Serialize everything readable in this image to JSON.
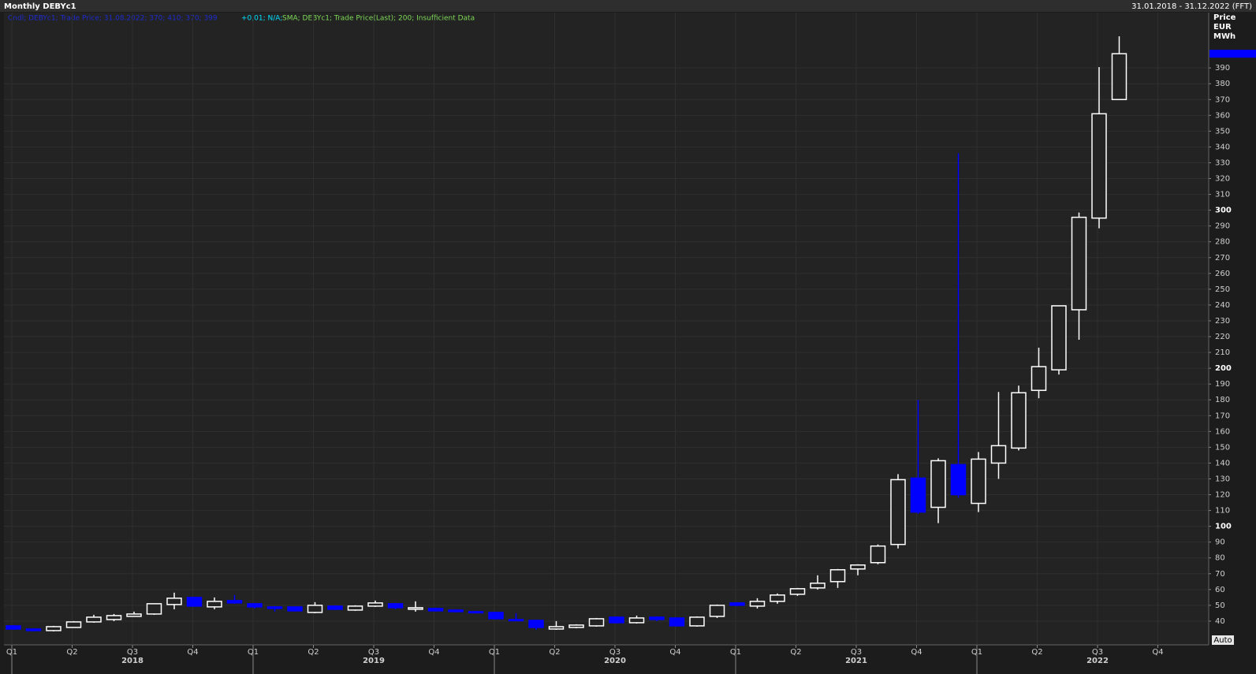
{
  "header": {
    "title": "Monthly DEBYc1",
    "range": "31.01.2018 - 31.12.2022 (FFT)"
  },
  "legend": {
    "candle": "Cndl; DEBYc1; Trade Price; 31.08.2022; 370; 410; 370; 399",
    "change": "+0,01; N/A;",
    "sma": "SMA; DEBYc1; Trade Price(Last);  200; Insufficient Data"
  },
  "auto_button": "Auto",
  "chart_data": {
    "type": "candlestick",
    "y_label": [
      "Price",
      "EUR",
      "MWh"
    ],
    "ylim": [
      25,
      425
    ],
    "yticks": [
      40,
      50,
      60,
      70,
      80,
      90,
      100,
      110,
      120,
      130,
      140,
      150,
      160,
      170,
      180,
      190,
      200,
      210,
      220,
      230,
      240,
      250,
      260,
      270,
      280,
      290,
      300,
      310,
      320,
      330,
      340,
      350,
      360,
      370,
      380,
      390
    ],
    "grid": true,
    "up_color": "#ffffff",
    "down_color": "#0000ff",
    "quarter_labels": [
      "Q1",
      "Q2",
      "Q3",
      "Q4",
      "Q1",
      "Q2",
      "Q3",
      "Q4",
      "Q1",
      "Q2",
      "Q3",
      "Q4",
      "Q1",
      "Q2",
      "Q3",
      "Q4",
      "Q1",
      "Q2",
      "Q3",
      "Q4"
    ],
    "years": [
      "2018",
      "2019",
      "2020",
      "2021",
      "2022"
    ],
    "open": [
      37,
      35,
      34,
      36,
      39.5,
      41,
      43,
      44.5,
      50.5,
      55,
      49,
      53,
      51,
      49,
      49,
      45.5,
      49.5,
      47,
      49.5,
      51,
      47.5,
      48,
      47,
      46,
      45.5,
      41,
      40.5,
      35,
      36,
      37,
      42.5,
      39,
      42.5,
      42,
      37,
      43,
      51.5,
      49.5,
      52.5,
      57,
      61,
      65,
      73,
      77,
      88.5,
      130.5,
      112,
      139,
      114.5,
      140,
      149.5,
      186,
      199,
      237,
      295,
      370
    ],
    "high": [
      37.5,
      35,
      37,
      40,
      44,
      44.5,
      46,
      51,
      58,
      55,
      55,
      56.5,
      51.5,
      49.5,
      49,
      52,
      50,
      50,
      53,
      51.5,
      52.5,
      48.5,
      47.5,
      46.5,
      46,
      45,
      41,
      40,
      38,
      42,
      43,
      43.5,
      43,
      42.5,
      43,
      50.5,
      52,
      54.5,
      57.5,
      61,
      69,
      73,
      76,
      88.5,
      133,
      180,
      143,
      336,
      147,
      185,
      189,
      213,
      239.5,
      298.5,
      390.5,
      410
    ],
    "low": [
      34.5,
      33.5,
      33.5,
      36,
      39,
      40,
      43,
      44,
      47.5,
      49,
      47.5,
      51,
      48,
      46,
      46,
      45,
      47,
      46.5,
      49,
      47.5,
      46,
      46,
      45.5,
      45,
      41,
      40,
      34.5,
      34.5,
      35.5,
      36.5,
      38.5,
      38.5,
      40,
      36.5,
      36.5,
      42,
      49.5,
      48,
      51,
      56,
      60,
      61,
      69,
      76,
      86,
      108,
      102,
      118,
      109,
      130,
      148,
      181,
      196,
      218,
      288.5,
      370
    ],
    "close": [
      35,
      34,
      36.5,
      39.5,
      42.5,
      43.5,
      44.5,
      51,
      54.5,
      49.5,
      52.5,
      51.5,
      49,
      48,
      46.5,
      50,
      47.5,
      49.5,
      51.5,
      48.5,
      48.5,
      46.5,
      46,
      45.5,
      41.5,
      40.5,
      36,
      36.5,
      37.5,
      41.5,
      39,
      42,
      41,
      37,
      42.5,
      50,
      50,
      52.5,
      56.5,
      60.5,
      64,
      72.5,
      75.5,
      87.5,
      129.5,
      109,
      141.5,
      120,
      142.5,
      151,
      184.5,
      201,
      239.5,
      295.5,
      361,
      399
    ]
  }
}
